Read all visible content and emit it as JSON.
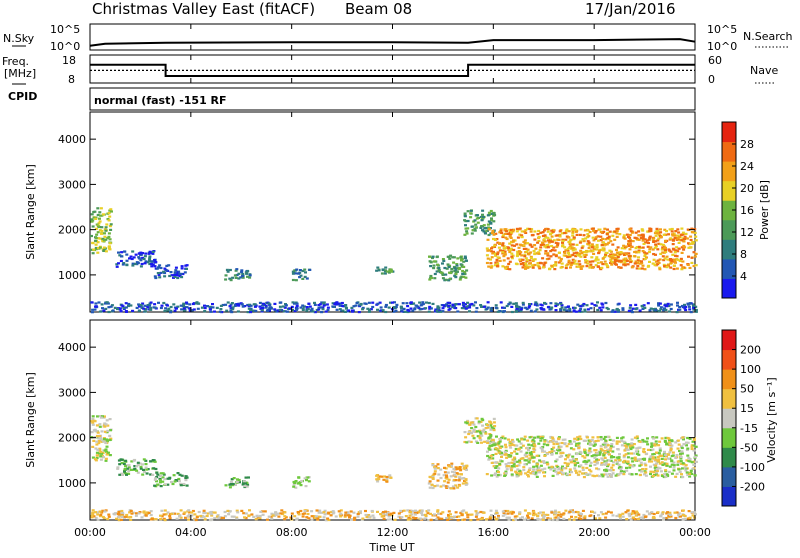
{
  "header": {
    "title": "Christmas Valley East (fitACF)",
    "beam": "Beam 08",
    "date": "17/Jan/2016"
  },
  "sky_panel": {
    "left_label": "N.Sky",
    "right_label": "N.Search",
    "left_ticks": [
      "10^5",
      "10^0"
    ],
    "right_ticks": [
      "10^5",
      "10^0"
    ]
  },
  "freq_panel": {
    "left_label_1": "Freq.",
    "left_label_2": "[MHz]",
    "right_label": "Nave",
    "left_ticks": [
      "18",
      "8"
    ],
    "right_ticks": [
      "60",
      "0"
    ]
  },
  "cpid": {
    "label": "CPID",
    "text": "normal (fast) -151 RF"
  },
  "power_panel": {
    "ylabel": "Slant Range [km]",
    "yticks": [
      "4000",
      "3000",
      "2000",
      "1000"
    ],
    "colorbar_label": "Power [dB]",
    "colorbar_ticks": [
      "28",
      "24",
      "20",
      "16",
      "12",
      "8",
      "4"
    ],
    "colors": [
      "#1a1aee",
      "#2257b4",
      "#2f7d7d",
      "#4c9a58",
      "#6db33f",
      "#e8d025",
      "#f2a018",
      "#ef6a12",
      "#e52410"
    ]
  },
  "velocity_panel": {
    "ylabel": "Slant Range [km]",
    "yticks": [
      "4000",
      "3000",
      "2000",
      "1000"
    ],
    "colorbar_label": "Velocity [m s⁻¹]",
    "colorbar_ticks": [
      "200",
      "100",
      "50",
      "15",
      "-15",
      "-50",
      "-100",
      "-200"
    ],
    "colors": [
      "#1a2fc8",
      "#2a5ea0",
      "#2f8a4a",
      "#6ec83c",
      "#c8c8c0",
      "#f0c040",
      "#f09018",
      "#f05018",
      "#e01818"
    ]
  },
  "x_axis": {
    "ticks": [
      "00:00",
      "04:00",
      "08:00",
      "12:00",
      "16:00",
      "20:00",
      "00:00"
    ],
    "label": "Time UT"
  },
  "chart_data": [
    {
      "type": "line",
      "name": "sky_noise",
      "x": [
        0,
        0.6,
        3.0,
        8.0,
        12.0,
        15.0,
        16.0,
        20.0,
        23.4,
        24.0
      ],
      "y_log": [
        0.8,
        1.2,
        1.4,
        1.5,
        1.5,
        1.4,
        1.9,
        1.9,
        2.1,
        1.6
      ],
      "xlabel": "Time UT",
      "xlim": [
        0,
        24
      ]
    },
    {
      "type": "line",
      "name": "frequency_nave",
      "series": [
        {
          "values": [
            [
              0,
              14.5
            ],
            [
              3.0,
              14.5
            ],
            [
              3.0,
              10.5
            ],
            [
              15.0,
              10.5
            ],
            [
              15.0,
              14.5
            ],
            [
              24,
              14.5
            ]
          ]
        },
        {
          "values": [
            [
              0,
              12.5
            ],
            [
              24,
              12.5
            ]
          ]
        }
      ],
      "ylim": [
        8,
        18
      ],
      "xlim": [
        0,
        24
      ]
    },
    {
      "type": "heatmap",
      "name": "power",
      "title": "Power [dB]",
      "xlabel": "Time UT",
      "ylabel": "Slant Range [km]",
      "xlim": [
        0,
        24
      ],
      "ylim": [
        180,
        4600
      ],
      "zlim": [
        0,
        30
      ],
      "regions": [
        {
          "t0": 0.0,
          "t1": 0.8,
          "r0": 1500,
          "r1": 2500,
          "level": 4
        },
        {
          "t0": 1.0,
          "t1": 2.6,
          "r0": 1200,
          "r1": 1550,
          "level": 1
        },
        {
          "t0": 2.5,
          "t1": 3.8,
          "r0": 950,
          "r1": 1250,
          "level": 1
        },
        {
          "t0": 5.3,
          "t1": 6.3,
          "r0": 900,
          "r1": 1150,
          "level": 2
        },
        {
          "t0": 8.0,
          "t1": 8.7,
          "r0": 900,
          "r1": 1150,
          "level": 2
        },
        {
          "t0": 11.3,
          "t1": 12.0,
          "r0": 1050,
          "r1": 1200,
          "level": 3
        },
        {
          "t0": 13.4,
          "t1": 14.9,
          "r0": 900,
          "r1": 1450,
          "level": 3
        },
        {
          "t0": 14.8,
          "t1": 16.0,
          "r0": 1900,
          "r1": 2450,
          "level": 3
        },
        {
          "t0": 15.7,
          "t1": 24.0,
          "r0": 1150,
          "r1": 2050,
          "level": 6
        },
        {
          "t0": 0.0,
          "t1": 24.0,
          "r0": 200,
          "r1": 420,
          "level": 1
        }
      ]
    },
    {
      "type": "heatmap",
      "name": "velocity",
      "title": "Velocity [m s⁻¹]",
      "xlabel": "Time UT",
      "ylabel": "Slant Range [km]",
      "xlim": [
        0,
        24
      ],
      "ylim": [
        180,
        4600
      ],
      "zlim": [
        -250,
        250
      ],
      "regions": [
        {
          "t0": 0.0,
          "t1": 0.8,
          "r0": 1500,
          "r1": 2500,
          "level": 4
        },
        {
          "t0": 1.0,
          "t1": 2.6,
          "r0": 1200,
          "r1": 1550,
          "level": 3
        },
        {
          "t0": 2.5,
          "t1": 3.8,
          "r0": 950,
          "r1": 1250,
          "level": 3
        },
        {
          "t0": 5.3,
          "t1": 6.3,
          "r0": 900,
          "r1": 1150,
          "level": 3
        },
        {
          "t0": 8.0,
          "t1": 8.7,
          "r0": 900,
          "r1": 1150,
          "level": 3
        },
        {
          "t0": 11.3,
          "t1": 12.0,
          "r0": 1050,
          "r1": 1200,
          "level": 5
        },
        {
          "t0": 13.4,
          "t1": 14.9,
          "r0": 900,
          "r1": 1450,
          "level": 5
        },
        {
          "t0": 14.8,
          "t1": 16.0,
          "r0": 1900,
          "r1": 2450,
          "level": 4
        },
        {
          "t0": 15.7,
          "t1": 24.0,
          "r0": 1150,
          "r1": 2050,
          "level": 4
        },
        {
          "t0": 0.0,
          "t1": 24.0,
          "r0": 200,
          "r1": 420,
          "level": 5
        }
      ]
    }
  ]
}
